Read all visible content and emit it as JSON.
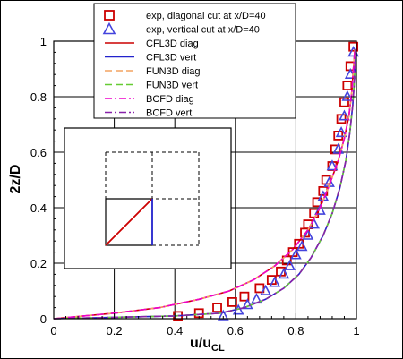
{
  "chart_data": {
    "type": "line",
    "xlabel_main": "u/u",
    "xlabel_sub": "CL",
    "ylabel": "2z/D",
    "xlim": [
      0,
      1
    ],
    "ylim": [
      0,
      1
    ],
    "x_ticks": [
      "0",
      "0.2",
      "0.4",
      "0.6",
      "0.8",
      "1"
    ],
    "y_ticks": [
      "0",
      "0.2",
      "0.4",
      "0.6",
      "0.8",
      "1"
    ],
    "grid": true,
    "legend_position": "top-right",
    "series": [
      {
        "name": "exp, diagonal cut at x/D=40",
        "kind": "markers",
        "marker": "square",
        "color": "#cc0000",
        "x": [
          0.41,
          0.48,
          0.54,
          0.59,
          0.63,
          0.68,
          0.72,
          0.75,
          0.77,
          0.79,
          0.81,
          0.83,
          0.84,
          0.86,
          0.87,
          0.89,
          0.9,
          0.92,
          0.93,
          0.94,
          0.95,
          0.96,
          0.97,
          0.98,
          0.99
        ],
        "y": [
          0.01,
          0.02,
          0.04,
          0.06,
          0.08,
          0.11,
          0.14,
          0.17,
          0.21,
          0.24,
          0.27,
          0.31,
          0.34,
          0.38,
          0.42,
          0.46,
          0.5,
          0.55,
          0.61,
          0.66,
          0.72,
          0.78,
          0.84,
          0.91,
          0.98
        ]
      },
      {
        "name": "exp, vertical cut at x/D=40",
        "kind": "markers",
        "marker": "triangle",
        "color": "#4444dd",
        "x": [
          0.56,
          0.61,
          0.64,
          0.67,
          0.7,
          0.73,
          0.76,
          0.78,
          0.8,
          0.82,
          0.84,
          0.86,
          0.88,
          0.89,
          0.91,
          0.92,
          0.94,
          0.95,
          0.96,
          0.97,
          0.98,
          0.99
        ],
        "y": [
          0.01,
          0.03,
          0.05,
          0.07,
          0.1,
          0.13,
          0.16,
          0.19,
          0.23,
          0.26,
          0.3,
          0.34,
          0.39,
          0.44,
          0.49,
          0.55,
          0.61,
          0.67,
          0.73,
          0.8,
          0.88,
          0.96
        ]
      },
      {
        "name": "CFL3D diag",
        "kind": "line",
        "dash": "solid",
        "color": "#cc0000",
        "x": [
          0.0,
          0.2,
          0.35,
          0.48,
          0.58,
          0.66,
          0.73,
          0.79,
          0.84,
          0.88,
          0.91,
          0.94,
          0.96,
          0.975,
          0.985,
          0.99,
          0.995
        ],
        "y": [
          0.0,
          0.02,
          0.04,
          0.07,
          0.1,
          0.14,
          0.19,
          0.25,
          0.32,
          0.4,
          0.48,
          0.57,
          0.65,
          0.73,
          0.82,
          0.9,
          0.97
        ]
      },
      {
        "name": "CFL3D vert",
        "kind": "line",
        "dash": "solid",
        "color": "#2222cc",
        "x": [
          0.0,
          0.4,
          0.55,
          0.63,
          0.7,
          0.76,
          0.81,
          0.85,
          0.89,
          0.92,
          0.945,
          0.965,
          0.978,
          0.988,
          0.994,
          0.997
        ],
        "y": [
          0.0,
          0.01,
          0.02,
          0.04,
          0.07,
          0.11,
          0.16,
          0.22,
          0.3,
          0.38,
          0.47,
          0.57,
          0.67,
          0.77,
          0.87,
          0.97
        ]
      },
      {
        "name": "FUN3D diag",
        "kind": "line",
        "dash": "long",
        "color": "#f4a460",
        "x": [
          0.0,
          0.2,
          0.35,
          0.48,
          0.58,
          0.66,
          0.73,
          0.79,
          0.84,
          0.88,
          0.91,
          0.94,
          0.96,
          0.975,
          0.985,
          0.99,
          0.995
        ],
        "y": [
          0.0,
          0.02,
          0.04,
          0.07,
          0.1,
          0.14,
          0.19,
          0.25,
          0.32,
          0.4,
          0.48,
          0.57,
          0.65,
          0.73,
          0.82,
          0.9,
          0.97
        ]
      },
      {
        "name": "FUN3D vert",
        "kind": "line",
        "dash": "long",
        "color": "#66cc33",
        "x": [
          0.0,
          0.4,
          0.55,
          0.63,
          0.7,
          0.76,
          0.81,
          0.85,
          0.89,
          0.92,
          0.945,
          0.965,
          0.978,
          0.988,
          0.994,
          0.997
        ],
        "y": [
          0.0,
          0.01,
          0.02,
          0.04,
          0.07,
          0.11,
          0.16,
          0.22,
          0.3,
          0.38,
          0.47,
          0.57,
          0.67,
          0.77,
          0.87,
          0.97
        ]
      },
      {
        "name": "BCFD diag",
        "kind": "line",
        "dash": "dashdot",
        "color": "#ee00cc",
        "x": [
          0.0,
          0.2,
          0.35,
          0.48,
          0.58,
          0.66,
          0.73,
          0.79,
          0.84,
          0.88,
          0.91,
          0.94,
          0.96,
          0.975,
          0.985,
          0.99,
          0.995
        ],
        "y": [
          0.0,
          0.02,
          0.04,
          0.07,
          0.1,
          0.14,
          0.19,
          0.25,
          0.32,
          0.4,
          0.48,
          0.57,
          0.65,
          0.73,
          0.82,
          0.9,
          0.97
        ]
      },
      {
        "name": "BCFD vert",
        "kind": "line",
        "dash": "dashdot",
        "color": "#8822aa",
        "x": [
          0.0,
          0.4,
          0.55,
          0.63,
          0.7,
          0.76,
          0.81,
          0.85,
          0.89,
          0.92,
          0.945,
          0.965,
          0.978,
          0.988,
          0.994,
          0.997
        ],
        "y": [
          0.0,
          0.01,
          0.02,
          0.04,
          0.07,
          0.11,
          0.16,
          0.22,
          0.3,
          0.38,
          0.47,
          0.57,
          0.67,
          0.77,
          0.87,
          0.97
        ]
      }
    ]
  }
}
